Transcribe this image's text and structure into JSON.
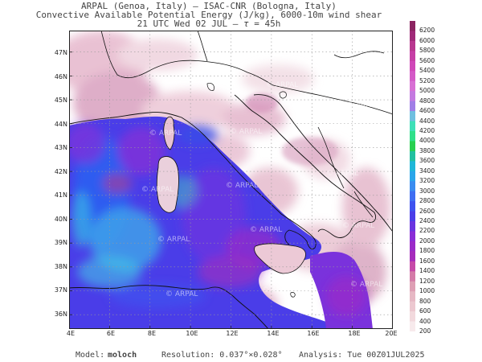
{
  "header": {
    "line1": "ARPAL (Genoa, Italy)  –  ISAC-CNR (Bologna, Italy)",
    "line2": "Convective Available Potential Energy (J/kg), 6000-10m wind shear",
    "line3_prefix": "21 UTC Wed 02 JUL  –  ",
    "line3_tau": "τ",
    "line3_suffix": " = 45h"
  },
  "map": {
    "watermark": "© ARPAL",
    "lat_labels": [
      "47N",
      "46N",
      "45N",
      "44N",
      "43N",
      "42N",
      "41N",
      "40N",
      "39N",
      "38N",
      "37N",
      "36N"
    ],
    "lon_labels": [
      "4E",
      "6E",
      "8E",
      "10E",
      "12E",
      "14E",
      "16E",
      "18E",
      "20E"
    ],
    "extent": {
      "lon_min": 4,
      "lon_max": 20,
      "lat_min": 35.4,
      "lat_max": 47.9
    },
    "sea_colors": {
      "deep": "#3a4de8",
      "mid": "#6a34e0",
      "purple": "#9a2bc8",
      "cyan": "#39b7e6",
      "land_pink": "#e9bfd3",
      "land_white": "#ffffff"
    }
  },
  "colorbar": {
    "labels": [
      "6200",
      "6000",
      "5800",
      "5600",
      "5400",
      "5200",
      "5000",
      "4800",
      "4600",
      "4400",
      "4200",
      "4000",
      "3800",
      "3600",
      "3400",
      "3200",
      "3000",
      "2800",
      "2600",
      "2400",
      "2200",
      "2000",
      "1800",
      "1600",
      "1400",
      "1200",
      "1000",
      "800",
      "600",
      "400",
      "200"
    ],
    "colors": [
      "#8b2460",
      "#a02a78",
      "#b8378e",
      "#c63fa5",
      "#d048b8",
      "#d45ac7",
      "#d870d4",
      "#c47ae0",
      "#a07ee6",
      "#6fbfe0",
      "#3ee0b8",
      "#2fe08a",
      "#28d050",
      "#22c0a0",
      "#1fb7d8",
      "#2aa6ea",
      "#3a8cf0",
      "#3f6ef2",
      "#3e52ef",
      "#4a3ee8",
      "#6a34e0",
      "#8a2dd6",
      "#9a2bc8",
      "#a62cbc",
      "#c64aa8",
      "#d47ba8",
      "#de9fb4",
      "#e6b8c4",
      "#ecc8d0",
      "#f2d9dd",
      "#f7eaec"
    ]
  },
  "footer": {
    "model_label": "Model:",
    "model_value": "moloch",
    "resolution": "Resolution: 0.037°×0.028°",
    "analysis": "Analysis: Tue 00Z01JUL2025"
  }
}
